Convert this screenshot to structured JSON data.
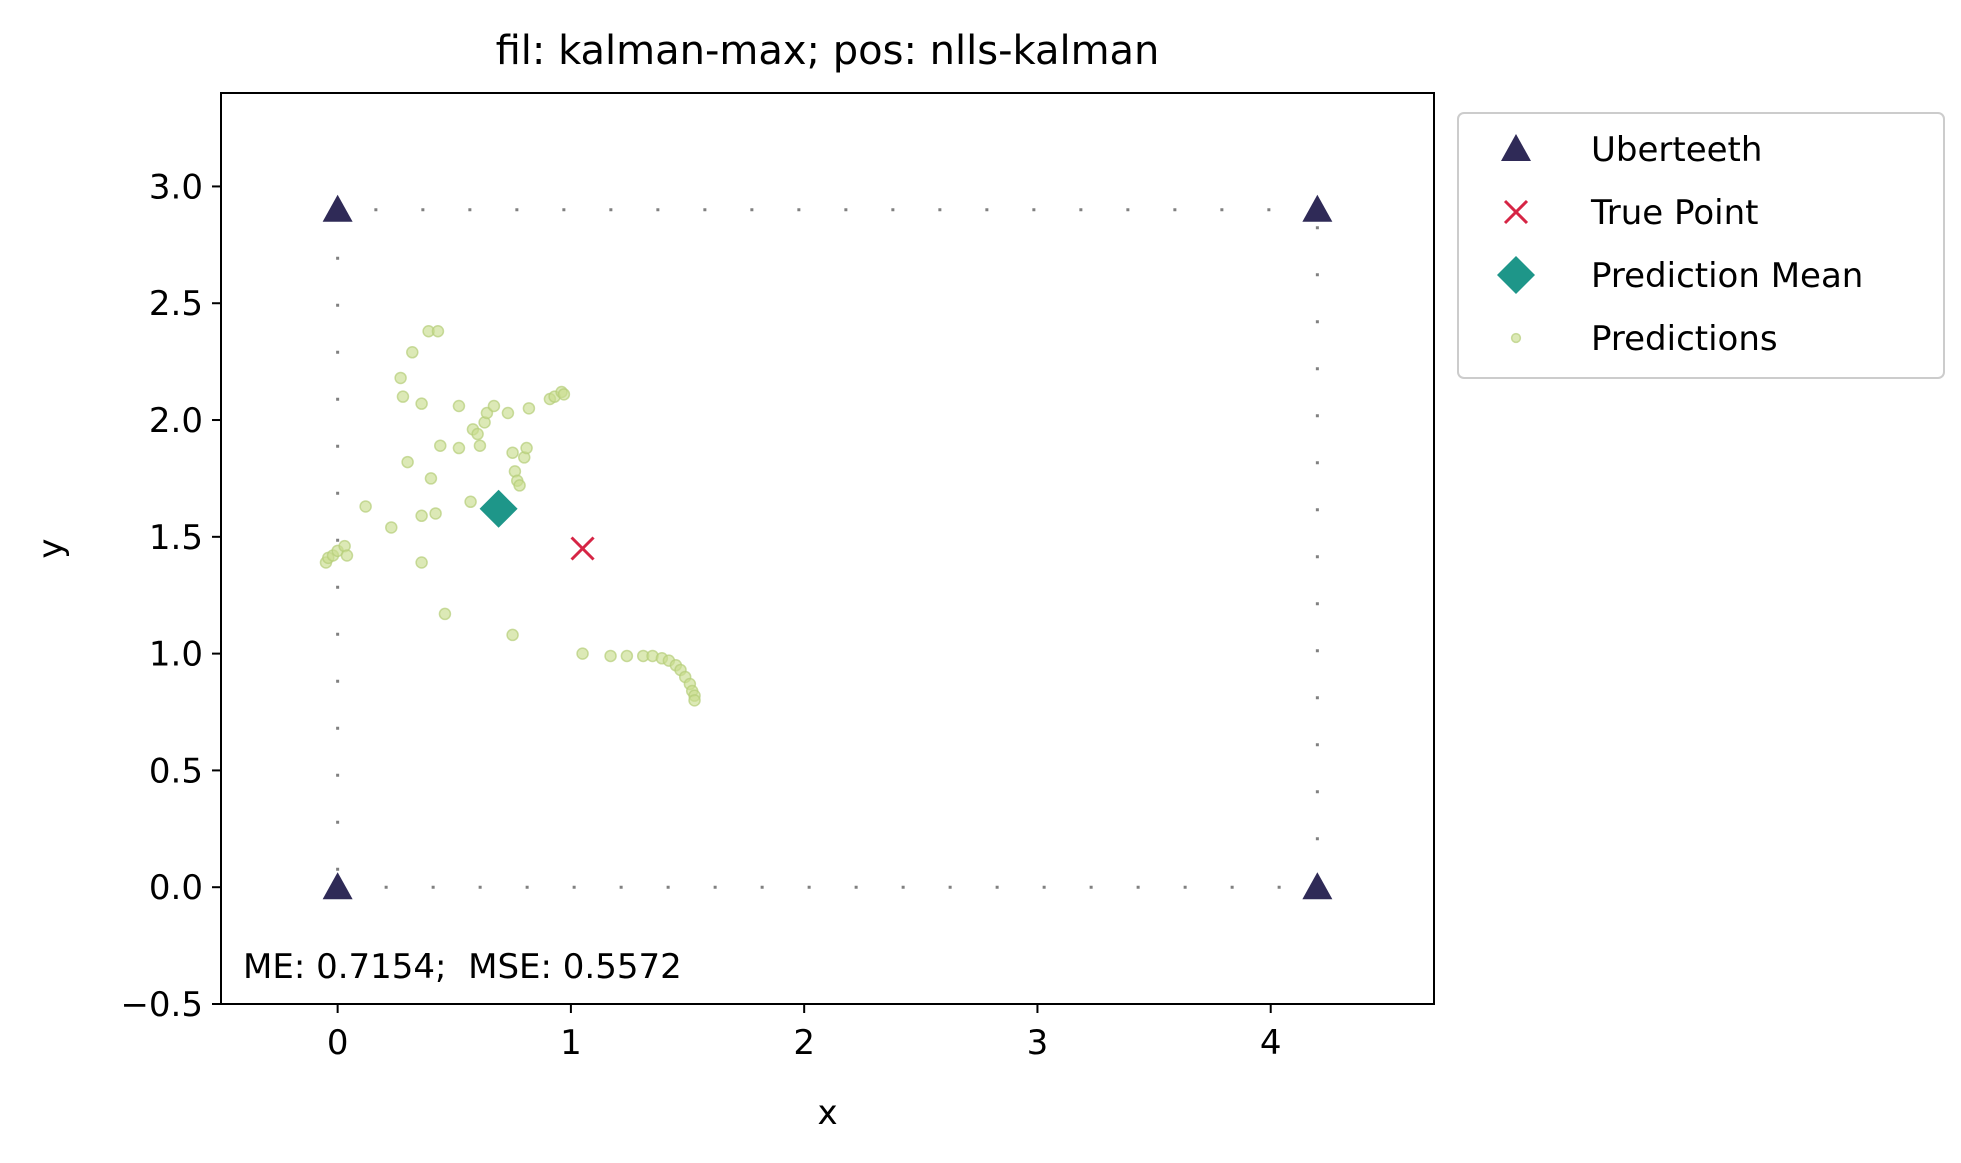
{
  "chart_data": {
    "type": "scatter",
    "title": "fil: kalman-max; pos: nlls-kalman",
    "xlabel": "x",
    "ylabel": "y",
    "xlim": [
      -0.5,
      4.7
    ],
    "ylim": [
      -0.5,
      3.4
    ],
    "xticks": [
      0,
      1,
      2,
      3,
      4
    ],
    "yticks": [
      -0.5,
      0.0,
      0.5,
      1.0,
      1.5,
      2.0,
      2.5,
      3.0
    ],
    "xtick_labels": [
      "0",
      "1",
      "2",
      "3",
      "4"
    ],
    "ytick_labels": [
      "−0.5",
      "0.0",
      "0.5",
      "1.0",
      "1.5",
      "2.0",
      "2.5",
      "3.0"
    ],
    "grid": false,
    "legend_placement": "outside-top-right",
    "annotation": "ME: 0.7154;  MSE: 0.5572",
    "boundary": {
      "style": "dotted",
      "color": "#808080",
      "corners": [
        [
          0,
          0
        ],
        [
          4.2,
          0
        ],
        [
          4.2,
          2.9
        ],
        [
          0,
          2.9
        ]
      ]
    },
    "series": [
      {
        "name": "Uberteeth",
        "marker": "triangle",
        "color": "#2f2a57",
        "points": [
          [
            0,
            0
          ],
          [
            4.2,
            0
          ],
          [
            4.2,
            2.9
          ],
          [
            0,
            2.9
          ]
        ]
      },
      {
        "name": "True Point",
        "marker": "x",
        "color": "#d62545",
        "points": [
          [
            1.05,
            1.45
          ]
        ]
      },
      {
        "name": "Prediction Mean",
        "marker": "diamond",
        "color": "#1e9689",
        "points": [
          [
            0.69,
            1.62
          ]
        ]
      },
      {
        "name": "Predictions",
        "marker": "dot",
        "color": "#c9dd8f",
        "points": [
          [
            -0.05,
            1.39
          ],
          [
            -0.04,
            1.41
          ],
          [
            -0.02,
            1.42
          ],
          [
            0.0,
            1.44
          ],
          [
            0.03,
            1.46
          ],
          [
            0.04,
            1.42
          ],
          [
            0.12,
            1.63
          ],
          [
            0.23,
            1.54
          ],
          [
            0.3,
            1.82
          ],
          [
            0.36,
            1.39
          ],
          [
            0.36,
            1.59
          ],
          [
            0.4,
            1.75
          ],
          [
            0.42,
            1.6
          ],
          [
            0.44,
            1.89
          ],
          [
            0.46,
            1.17
          ],
          [
            0.52,
            1.88
          ],
          [
            0.52,
            2.06
          ],
          [
            0.36,
            2.07
          ],
          [
            0.27,
            2.18
          ],
          [
            0.28,
            2.1
          ],
          [
            0.32,
            2.29
          ],
          [
            0.39,
            2.38
          ],
          [
            0.43,
            2.38
          ],
          [
            0.57,
            1.65
          ],
          [
            0.58,
            1.96
          ],
          [
            0.6,
            1.94
          ],
          [
            0.61,
            1.89
          ],
          [
            0.63,
            1.99
          ],
          [
            0.64,
            2.03
          ],
          [
            0.67,
            2.06
          ],
          [
            0.73,
            2.03
          ],
          [
            0.75,
            1.86
          ],
          [
            0.76,
            1.78
          ],
          [
            0.77,
            1.74
          ],
          [
            0.78,
            1.72
          ],
          [
            0.8,
            1.84
          ],
          [
            0.81,
            1.88
          ],
          [
            0.82,
            2.05
          ],
          [
            0.91,
            2.09
          ],
          [
            0.93,
            2.1
          ],
          [
            0.96,
            2.12
          ],
          [
            0.97,
            2.11
          ],
          [
            0.75,
            1.08
          ],
          [
            1.05,
            1.0
          ],
          [
            1.17,
            0.99
          ],
          [
            1.24,
            0.99
          ],
          [
            1.31,
            0.99
          ],
          [
            1.35,
            0.99
          ],
          [
            1.39,
            0.98
          ],
          [
            1.42,
            0.97
          ],
          [
            1.45,
            0.95
          ],
          [
            1.47,
            0.93
          ],
          [
            1.49,
            0.9
          ],
          [
            1.51,
            0.87
          ],
          [
            1.52,
            0.84
          ],
          [
            1.53,
            0.82
          ],
          [
            1.53,
            0.8
          ]
        ]
      }
    ]
  }
}
